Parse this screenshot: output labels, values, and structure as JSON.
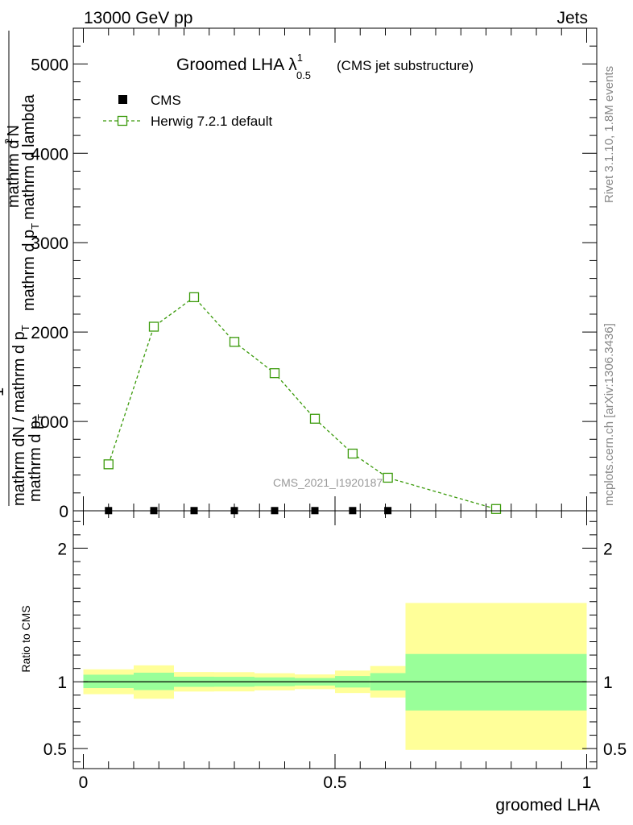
{
  "header": {
    "left": "13000 GeV pp",
    "right": "Jets"
  },
  "side_labels": {
    "rivet": "Rivet 3.1.10,  1.8M events",
    "mcplots": "mcplots.cern.ch [arXiv:1306.3436]"
  },
  "chart_data": [
    {
      "type": "line",
      "title": "Groomed LHA",
      "title_lambda": "λ",
      "title_sup": "1",
      "title_sub": "0.5",
      "subtitle": "(CMS jet substructure)",
      "watermark": "CMS_2021_I1920187",
      "ylabel_numerator": "1",
      "ylabel_denominator_1": "mathrm dN / mathrm d p",
      "ylabel_denominator_sub": "T",
      "ylabel_numerator_2": "mathrm d",
      "ylabel_numerator_2_sup": "2",
      "ylabel_numerator_2_rest": "N",
      "ylabel_denominator_2": "mathrm d p",
      "ylabel_denominator_2_sub": "T",
      "ylabel_denominator_2_rest": "mathrm d lambda",
      "ylabel_line_a": "mathrm d",
      "ylabel_line_b": "N",
      "ylabel_line_c": "mathrm d p",
      "ylabel_line_d": "mathrm d lambda",
      "xlim": [
        -0.02,
        1.02
      ],
      "ylim": [
        0,
        5400
      ],
      "yticks": [
        {
          "value": 0,
          "label": "0"
        },
        {
          "value": 1000,
          "label": "1000"
        },
        {
          "value": 2000,
          "label": "2000"
        },
        {
          "value": 3000,
          "label": "3000"
        },
        {
          "value": 4000,
          "label": "4000"
        },
        {
          "value": 5000,
          "label": "5000"
        }
      ],
      "legend": {
        "placement": "top-left",
        "data_label": "CMS",
        "mc_label": "Herwig 7.2.1 default"
      },
      "series": [
        {
          "name": "CMS",
          "marker": "filled-square",
          "color": "#000000",
          "x": [
            0.05,
            0.14,
            0.22,
            0.3,
            0.38,
            0.46,
            0.535,
            0.605
          ],
          "y": [
            2,
            2,
            2,
            2,
            2,
            2,
            2,
            2
          ]
        },
        {
          "name": "Herwig 7.2.1 default",
          "marker": "open-square",
          "line": "dashed",
          "color": "#3a9a0a",
          "x": [
            0.05,
            0.14,
            0.22,
            0.3,
            0.38,
            0.46,
            0.535,
            0.605,
            0.82
          ],
          "y": [
            520,
            2060,
            2390,
            1890,
            1540,
            1030,
            640,
            370,
            20
          ]
        }
      ]
    },
    {
      "type": "area",
      "ylabel": "Ratio to CMS",
      "xlabel": "groomed LHA",
      "xlim": [
        -0.02,
        1.02
      ],
      "ylim": [
        0.35,
        2.28
      ],
      "xticks": [
        {
          "value": 0,
          "label": "0"
        },
        {
          "value": 0.5,
          "label": "0.5"
        },
        {
          "value": 1,
          "label": "1"
        }
      ],
      "yticks": [
        {
          "value": 0.5,
          "label": "0.5"
        },
        {
          "value": 1,
          "label": "1"
        },
        {
          "value": 2,
          "label": "2"
        }
      ],
      "band_colors": {
        "inner": "#99ff99",
        "outer": "#ffff99"
      },
      "bins": [
        {
          "lo": 0.0,
          "hi": 0.1,
          "inner": [
            0.953,
            1.053
          ],
          "outer": [
            0.907,
            1.093
          ]
        },
        {
          "lo": 0.1,
          "hi": 0.18,
          "inner": [
            0.938,
            1.068
          ],
          "outer": [
            0.873,
            1.123
          ]
        },
        {
          "lo": 0.18,
          "hi": 0.26,
          "inner": [
            0.962,
            1.038
          ],
          "outer": [
            0.927,
            1.073
          ]
        },
        {
          "lo": 0.26,
          "hi": 0.34,
          "inner": [
            0.963,
            1.037
          ],
          "outer": [
            0.928,
            1.072
          ]
        },
        {
          "lo": 0.34,
          "hi": 0.42,
          "inner": [
            0.967,
            1.033
          ],
          "outer": [
            0.936,
            1.064
          ]
        },
        {
          "lo": 0.42,
          "hi": 0.5,
          "inner": [
            0.972,
            1.028
          ],
          "outer": [
            0.945,
            1.055
          ]
        },
        {
          "lo": 0.5,
          "hi": 0.57,
          "inner": [
            0.957,
            1.043
          ],
          "outer": [
            0.916,
            1.084
          ]
        },
        {
          "lo": 0.57,
          "hi": 0.64,
          "inner": [
            0.935,
            1.065
          ],
          "outer": [
            0.882,
            1.118
          ]
        },
        {
          "lo": 0.64,
          "hi": 1.0,
          "inner": [
            0.785,
            1.208
          ],
          "outer": [
            0.49,
            1.59
          ]
        }
      ],
      "reference": 1
    }
  ]
}
